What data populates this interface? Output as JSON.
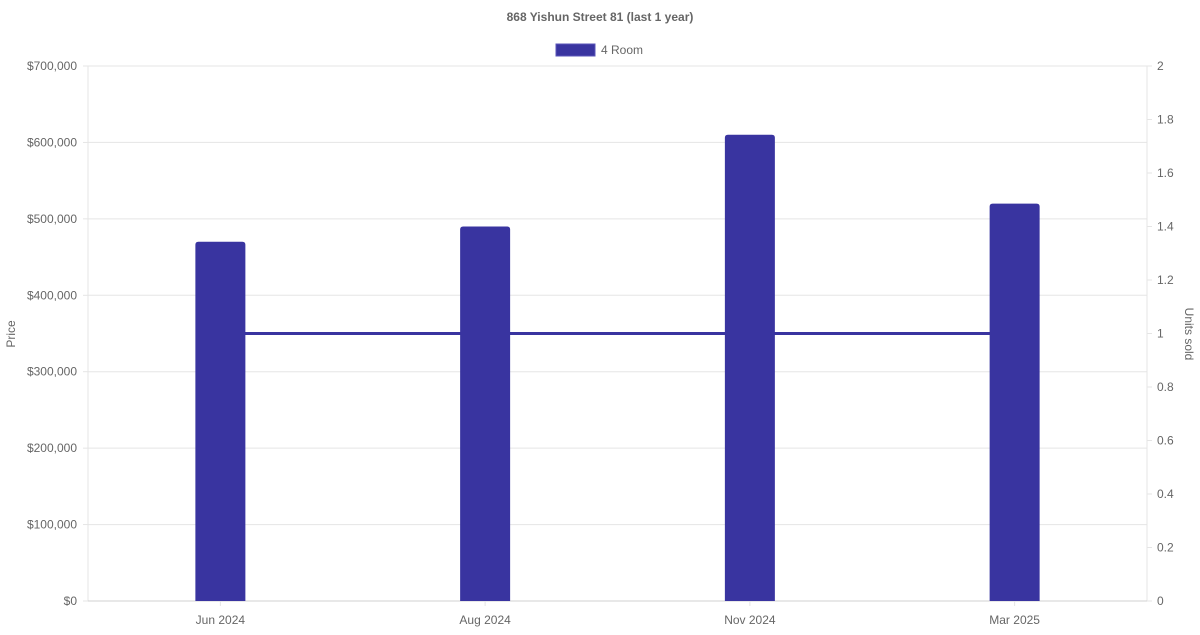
{
  "chart_data": {
    "type": "bar",
    "title": "868 Yishun Street 81 (last 1 year)",
    "categories": [
      "Jun 2024",
      "Aug 2024",
      "Nov 2024",
      "Mar 2025"
    ],
    "series": [
      {
        "name": "4 Room",
        "type": "bar",
        "axis": "left",
        "values": [
          470000,
          490000,
          610000,
          520000
        ],
        "color": "#3934a0"
      },
      {
        "type": "line",
        "axis": "right",
        "values": [
          1,
          1,
          1,
          1
        ],
        "color": "#3934a0"
      }
    ],
    "ylabel": "Price",
    "y2label": "Units sold",
    "ylim": [
      0,
      700000
    ],
    "y2lim": [
      0,
      2
    ],
    "yticks": [
      "$0",
      "$100,000",
      "$200,000",
      "$300,000",
      "$400,000",
      "$500,000",
      "$600,000",
      "$700,000"
    ],
    "y2ticks": [
      "0",
      "0.2",
      "0.4",
      "0.6",
      "0.8",
      "1",
      "1.2",
      "1.4",
      "1.6",
      "1.8",
      "2"
    ],
    "legend": "top",
    "grid": true
  }
}
